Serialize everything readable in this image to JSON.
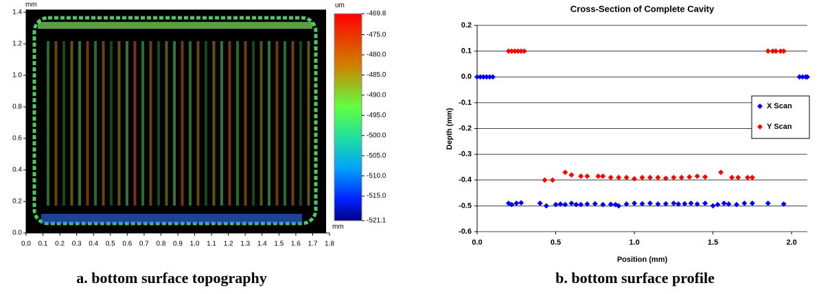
{
  "chart_data": [
    {
      "type": "heatmap",
      "caption": "a. bottom surface topography",
      "ylabel": "mm",
      "xlabel": "mm",
      "colorbar_label": "um",
      "xlim": [
        0,
        1.8
      ],
      "xticks": [
        {
          "value": 0,
          "label": "0.0"
        },
        0.1,
        0.2,
        0.3,
        0.4,
        0.5,
        0.6,
        0.7,
        0.8,
        0.9,
        {
          "value": 1,
          "label": "1.0"
        },
        1.1,
        1.2,
        1.3,
        1.4,
        1.5,
        1.6,
        1.7,
        1.8
      ],
      "ylim": [
        0,
        1.4
      ],
      "yticks": [
        {
          "value": 0,
          "label": "0.0"
        },
        0.2,
        0.4,
        0.6,
        0.8,
        {
          "value": 1,
          "label": "1.0"
        },
        1.2,
        1.4
      ],
      "clim": [
        -521.1,
        -469.8
      ],
      "cticks": [
        -469.8,
        {
          "value": -475,
          "label": "-475.0"
        },
        {
          "value": -480,
          "label": "-480.0"
        },
        {
          "value": -485,
          "label": "-485.0"
        },
        {
          "value": -490,
          "label": "-490.0"
        },
        {
          "value": -495,
          "label": "-495.0"
        },
        {
          "value": -500,
          "label": "-500.0"
        },
        {
          "value": -505,
          "label": "-505.0"
        },
        {
          "value": -510,
          "label": "-510.0"
        },
        {
          "value": -515,
          "label": "-515.0"
        },
        -521.1
      ]
    },
    {
      "type": "scatter",
      "title": "Cross-Section of Complete Cavity",
      "caption": "b.  bottom surface profile",
      "xlabel": "Position (mm)",
      "ylabel": "Depth (mm)",
      "xlim": [
        0,
        2.1
      ],
      "xticks": [
        {
          "value": 0,
          "label": "0.0"
        },
        0.5,
        {
          "value": 1,
          "label": "1.0"
        },
        1.5,
        {
          "value": 2,
          "label": "2.0"
        }
      ],
      "ylim": [
        -0.6,
        0.2
      ],
      "yticks": [
        0.2,
        0.1,
        {
          "value": 0,
          "label": "0.0"
        },
        -0.1,
        -0.2,
        -0.3,
        -0.4,
        -0.5,
        -0.6
      ],
      "grid": true,
      "legend": "right",
      "series": [
        {
          "name": "X Scan",
          "color": "#0000ff",
          "x": [
            0,
            0.02,
            0.04,
            0.06,
            0.08,
            0.1,
            0.2,
            0.22,
            0.25,
            0.28,
            0.4,
            0.44,
            0.5,
            0.53,
            0.56,
            0.6,
            0.63,
            0.66,
            0.7,
            0.75,
            0.8,
            0.85,
            0.88,
            0.9,
            0.95,
            1.0,
            1.05,
            1.1,
            1.15,
            1.2,
            1.25,
            1.28,
            1.32,
            1.36,
            1.4,
            1.45,
            1.5,
            1.53,
            1.57,
            1.6,
            1.65,
            1.7,
            1.75,
            1.85,
            1.95,
            2.05,
            2.07,
            2.09,
            2.1
          ],
          "values": [
            0,
            0,
            0,
            0,
            0,
            0,
            -0.49,
            -0.495,
            -0.49,
            -0.488,
            -0.49,
            -0.5,
            -0.495,
            -0.493,
            -0.495,
            -0.49,
            -0.495,
            -0.495,
            -0.493,
            -0.492,
            -0.495,
            -0.494,
            -0.495,
            -0.5,
            -0.493,
            -0.49,
            -0.492,
            -0.49,
            -0.493,
            -0.492,
            -0.49,
            -0.493,
            -0.492,
            -0.49,
            -0.493,
            -0.49,
            -0.5,
            -0.495,
            -0.49,
            -0.493,
            -0.495,
            -0.49,
            -0.49,
            -0.49,
            -0.493,
            0,
            0,
            0,
            0
          ]
        },
        {
          "name": "Y Scan",
          "color": "#ff0000",
          "x": [
            0.2,
            0.22,
            0.24,
            0.26,
            0.28,
            0.3,
            0.43,
            0.48,
            0.56,
            0.6,
            0.66,
            0.7,
            0.77,
            0.8,
            0.85,
            0.9,
            0.95,
            1.0,
            1.05,
            1.1,
            1.15,
            1.2,
            1.25,
            1.3,
            1.35,
            1.4,
            1.45,
            1.55,
            1.62,
            1.66,
            1.72,
            1.75,
            1.85,
            1.88,
            1.9,
            1.93,
            1.95
          ],
          "values": [
            0.1,
            0.1,
            0.1,
            0.1,
            0.1,
            0.1,
            -0.4,
            -0.4,
            -0.37,
            -0.38,
            -0.385,
            -0.385,
            -0.385,
            -0.385,
            -0.39,
            -0.39,
            -0.39,
            -0.395,
            -0.39,
            -0.39,
            -0.39,
            -0.393,
            -0.39,
            -0.39,
            -0.388,
            -0.385,
            -0.388,
            -0.37,
            -0.39,
            -0.39,
            -0.39,
            -0.39,
            0.1,
            0.1,
            0.1,
            0.1,
            0.1
          ]
        }
      ]
    }
  ]
}
